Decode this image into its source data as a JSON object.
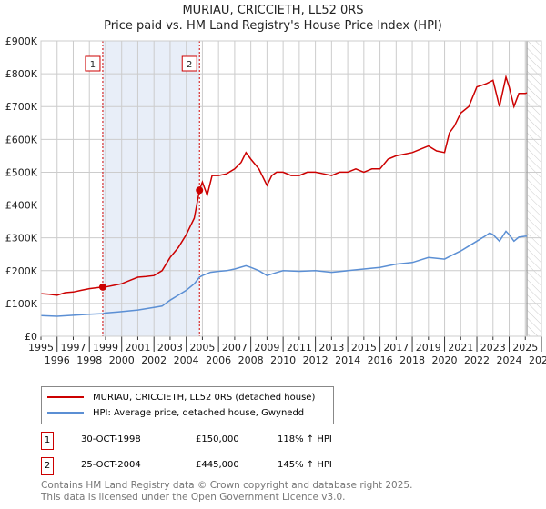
{
  "header": {
    "title": "MURIAU, CRICCIETH, LL52 0RS",
    "subtitle": "Price paid vs. HM Land Registry's House Price Index (HPI)"
  },
  "chart_data": {
    "type": "line",
    "title": "MURIAU, CRICCIETH, LL52 0RS",
    "subtitle": "Price paid vs. HM Land Registry's House Price Index (HPI)",
    "xlim": [
      1995,
      2026
    ],
    "ylim": [
      0,
      900000
    ],
    "xticks": [
      "1995",
      "1996",
      "1997",
      "1998",
      "1999",
      "2000",
      "2001",
      "2002",
      "2003",
      "2004",
      "2005",
      "2006",
      "2007",
      "2008",
      "2009",
      "2010",
      "2011",
      "2012",
      "2013",
      "2014",
      "2015",
      "2016",
      "2017",
      "2018",
      "2019",
      "2020",
      "2021",
      "2022",
      "2023",
      "2024",
      "2025",
      "2026"
    ],
    "yticks": [
      {
        "v": 0,
        "label": "£0"
      },
      {
        "v": 100000,
        "label": "£100K"
      },
      {
        "v": 200000,
        "label": "£200K"
      },
      {
        "v": 300000,
        "label": "£300K"
      },
      {
        "v": 400000,
        "label": "£400K"
      },
      {
        "v": 500000,
        "label": "£500K"
      },
      {
        "v": 600000,
        "label": "£600K"
      },
      {
        "v": 700000,
        "label": "£700K"
      },
      {
        "v": 800000,
        "label": "£800K"
      },
      {
        "v": 900000,
        "label": "£900K"
      }
    ],
    "grid": true,
    "forecast_start": 2025.1,
    "series": [
      {
        "name": "MURIAU, CRICCIETH, LL52 0RS (detached house)",
        "color": "#cc0000",
        "x": [
          1995,
          1995.5,
          1996,
          1996.5,
          1997,
          1997.5,
          1998,
          1998.83,
          1999,
          1999.5,
          2000,
          2000.5,
          2001,
          2001.5,
          2002,
          2002.5,
          2003,
          2003.5,
          2004,
          2004.5,
          2004.82,
          2005,
          2005.3,
          2005.6,
          2006,
          2006.5,
          2007,
          2007.4,
          2007.7,
          2008,
          2008.5,
          2009,
          2009.3,
          2009.6,
          2010,
          2010.5,
          2011,
          2011.5,
          2012,
          2012.5,
          2013,
          2013.5,
          2014,
          2014.5,
          2015,
          2015.5,
          2016,
          2016.5,
          2017,
          2017.5,
          2018,
          2018.5,
          2019,
          2019.5,
          2020,
          2020.3,
          2020.6,
          2021,
          2021.5,
          2022,
          2022.3,
          2022.6,
          2023,
          2023.4,
          2023.8,
          2024,
          2024.3,
          2024.6,
          2025,
          2025.1
        ],
        "y": [
          130000,
          128000,
          125000,
          133000,
          135000,
          140000,
          145000,
          150000,
          150000,
          155000,
          160000,
          170000,
          180000,
          182000,
          185000,
          200000,
          240000,
          270000,
          310000,
          360000,
          445000,
          470000,
          430000,
          490000,
          490000,
          495000,
          510000,
          530000,
          560000,
          540000,
          510000,
          460000,
          490000,
          500000,
          500000,
          490000,
          490000,
          500000,
          500000,
          495000,
          490000,
          500000,
          500000,
          510000,
          500000,
          510000,
          510000,
          540000,
          550000,
          555000,
          560000,
          570000,
          580000,
          565000,
          560000,
          620000,
          640000,
          680000,
          700000,
          760000,
          765000,
          770000,
          780000,
          700000,
          790000,
          760000,
          700000,
          740000,
          740000,
          742000
        ]
      },
      {
        "name": "HPI: Average price, detached house, Gwynedd",
        "color": "#5b8fd4",
        "x": [
          1995,
          1996,
          1997,
          1998,
          1998.83,
          1999,
          2000,
          2001,
          2002,
          2002.5,
          2003,
          2003.5,
          2004,
          2004.5,
          2004.82,
          2005,
          2005.5,
          2006,
          2006.5,
          2007,
          2007.7,
          2008,
          2008.5,
          2009,
          2009.5,
          2010,
          2011,
          2012,
          2013,
          2014,
          2015,
          2016,
          2017,
          2018,
          2019,
          2020,
          2020.5,
          2021,
          2021.5,
          2022,
          2022.5,
          2022.8,
          2023,
          2023.4,
          2023.8,
          2024,
          2024.3,
          2024.6,
          2025,
          2025.1
        ],
        "y": [
          63000,
          61000,
          64000,
          67000,
          69000,
          71000,
          75000,
          80000,
          88000,
          92000,
          110000,
          125000,
          140000,
          160000,
          180000,
          185000,
          195000,
          198000,
          200000,
          205000,
          215000,
          210000,
          200000,
          185000,
          193000,
          200000,
          198000,
          200000,
          195000,
          200000,
          205000,
          210000,
          220000,
          225000,
          240000,
          235000,
          248000,
          260000,
          275000,
          290000,
          305000,
          315000,
          310000,
          290000,
          320000,
          310000,
          290000,
          302000,
          305000,
          305000
        ]
      }
    ],
    "sales": [
      {
        "label": "1",
        "x": 1998.83,
        "y": 150000
      },
      {
        "label": "2",
        "x": 2004.82,
        "y": 445000
      }
    ]
  },
  "legend": [
    {
      "label": "MURIAU, CRICCIETH, LL52 0RS (detached house)",
      "color": "#cc0000"
    },
    {
      "label": "HPI: Average price, detached house, Gwynedd",
      "color": "#5b8fd4"
    }
  ],
  "transactions": [
    {
      "num": "1",
      "date": "30-OCT-1998",
      "price": "£150,000",
      "hpi": "118% ↑ HPI"
    },
    {
      "num": "2",
      "date": "25-OCT-2004",
      "price": "£445,000",
      "hpi": "145% ↑ HPI"
    }
  ],
  "footer": {
    "line1": "Contains HM Land Registry data © Crown copyright and database right 2025.",
    "line2": "This data is licensed under the Open Government Licence v3.0."
  }
}
